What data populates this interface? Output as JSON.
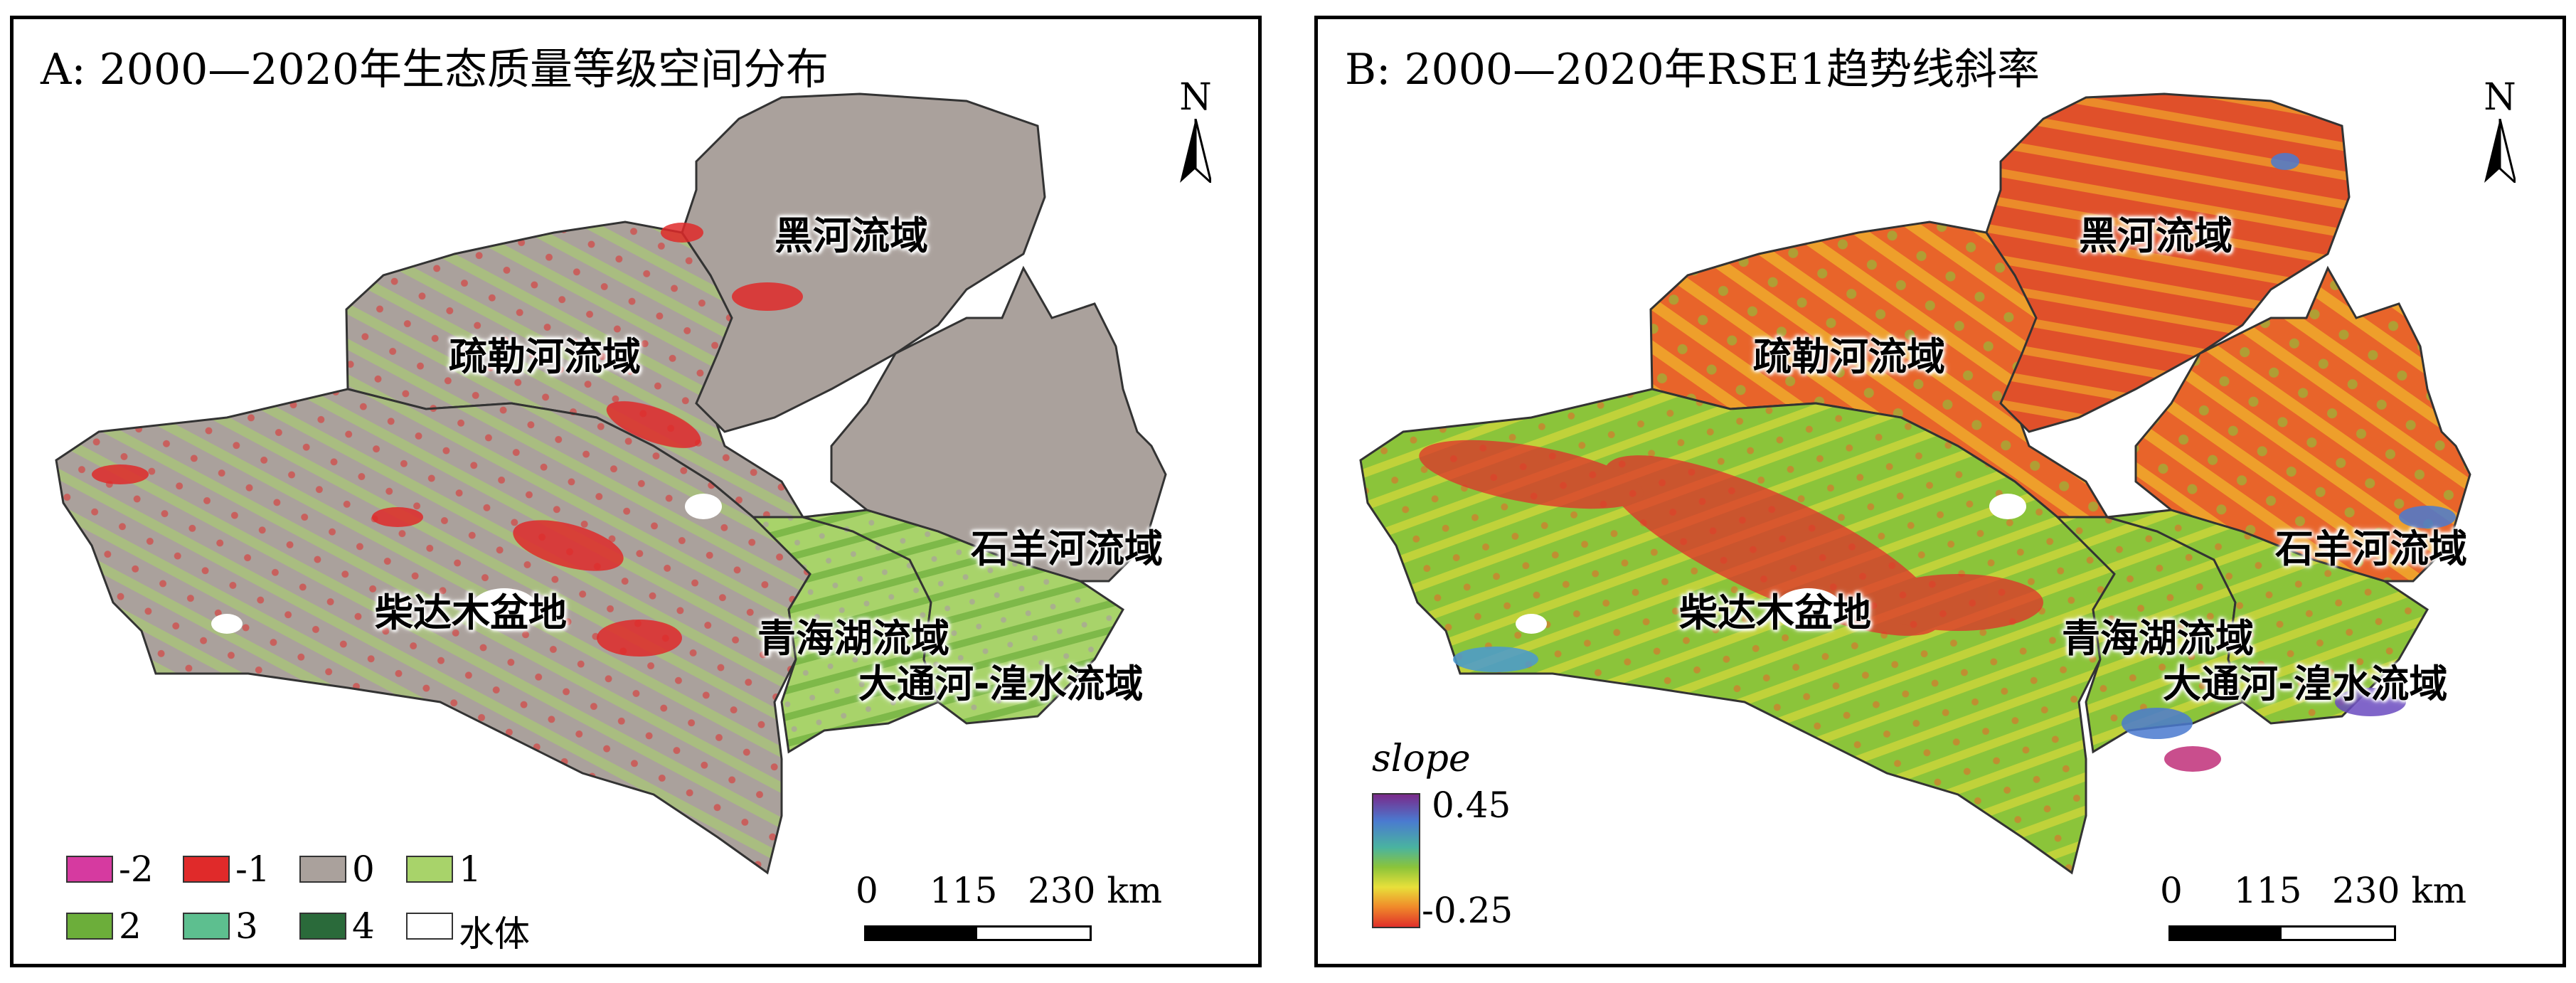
{
  "panel_a": {
    "title": "A: 2000—2020年生态质量等级空间分布",
    "north": "N",
    "regions": [
      "黑河流域",
      "疏勒河流域",
      "石羊河流域",
      "柴达木盆地",
      "青海湖流域",
      "大通河-湟水流域"
    ],
    "scale": {
      "ticks": [
        "0",
        "115",
        "230 km"
      ]
    },
    "legend": [
      {
        "label": "-2",
        "color": "#d63aa0"
      },
      {
        "label": "-1",
        "color": "#e02a2a"
      },
      {
        "label": "0",
        "color": "#aaa19c"
      },
      {
        "label": "1",
        "color": "#a8d36a"
      },
      {
        "label": "2",
        "color": "#6cae3a"
      },
      {
        "label": "3",
        "color": "#5dbf8f"
      },
      {
        "label": "4",
        "color": "#2a6a3a"
      },
      {
        "label": "水体",
        "color": "#ffffff"
      }
    ]
  },
  "panel_b": {
    "title": "B: 2000—2020年RSE1趋势线斜率",
    "north": "N",
    "regions": [
      "黑河流域",
      "疏勒河流域",
      "石羊河流域",
      "柴达木盆地",
      "青海湖流域",
      "大通河-湟水流域"
    ],
    "scale": {
      "ticks": [
        "0",
        "115",
        "230 km"
      ]
    },
    "legend": {
      "title": "slope",
      "max": "0.45",
      "min": "-0.25"
    }
  }
}
